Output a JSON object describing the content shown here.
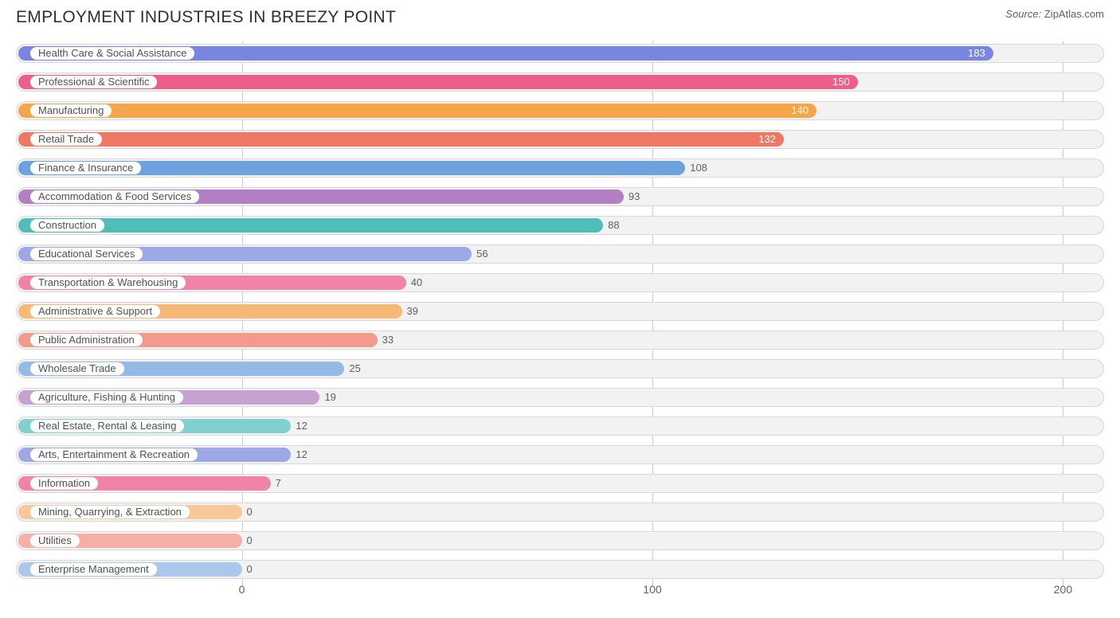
{
  "title": "EMPLOYMENT INDUSTRIES IN BREEZY POINT",
  "source_prefix": "Source:",
  "source_name": "ZipAtlas.com",
  "chart": {
    "type": "bar-horizontal",
    "x_min": -55,
    "x_max": 210,
    "axis_ticks": [
      0,
      100,
      200
    ],
    "track_bg": "#f2f2f2",
    "track_border": "#d8d8d8",
    "gridline_color": "#cccccc",
    "value_inside_threshold": 110,
    "bars": [
      {
        "label": "Health Care & Social Assistance",
        "value": 183,
        "color": "#7a85e0"
      },
      {
        "label": "Professional & Scientific",
        "value": 150,
        "color": "#ed5f8a"
      },
      {
        "label": "Manufacturing",
        "value": 140,
        "color": "#f5a64b"
      },
      {
        "label": "Retail Trade",
        "value": 132,
        "color": "#ef7763"
      },
      {
        "label": "Finance & Insurance",
        "value": 108,
        "color": "#6da2de"
      },
      {
        "label": "Accommodation & Food Services",
        "value": 93,
        "color": "#b27fc3"
      },
      {
        "label": "Construction",
        "value": 88,
        "color": "#4fbdb9"
      },
      {
        "label": "Educational Services",
        "value": 56,
        "color": "#9da8e4"
      },
      {
        "label": "Transportation & Warehousing",
        "value": 40,
        "color": "#f183a8"
      },
      {
        "label": "Administrative & Support",
        "value": 39,
        "color": "#f7b977"
      },
      {
        "label": "Public Administration",
        "value": 33,
        "color": "#f19a8d"
      },
      {
        "label": "Wholesale Trade",
        "value": 25,
        "color": "#93bbe6"
      },
      {
        "label": "Agriculture, Fishing & Hunting",
        "value": 19,
        "color": "#c6a2d3"
      },
      {
        "label": "Real Estate, Rental & Leasing",
        "value": 12,
        "color": "#82d0cd"
      },
      {
        "label": "Arts, Entertainment & Recreation",
        "value": 12,
        "color": "#9da8e4"
      },
      {
        "label": "Information",
        "value": 7,
        "color": "#f183a8"
      },
      {
        "label": "Mining, Quarrying, & Extraction",
        "value": 0,
        "color": "#f7c99a"
      },
      {
        "label": "Utilities",
        "value": 0,
        "color": "#f4b0a6"
      },
      {
        "label": "Enterprise Management",
        "value": 0,
        "color": "#aac8eb"
      }
    ]
  }
}
